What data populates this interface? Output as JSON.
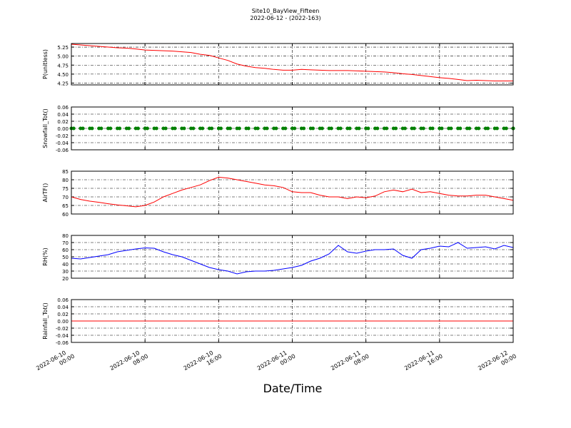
{
  "figure": {
    "title": "Site10_BayView_Fifteen",
    "subtitle": "2022-06-12 - (2022-163)",
    "xlabel": "Date/Time",
    "xlim": [
      "2022-06-10 00:00",
      "2022-06-12 00:00"
    ],
    "xticks": [
      "2022-06-10 00:00",
      "2022-06-10 08:00",
      "2022-06-10 16:00",
      "2022-06-11 00:00",
      "2022-06-11 08:00",
      "2022-06-11 16:00",
      "2022-06-12 00:00"
    ],
    "x": [
      "2022-06-10 00:00",
      "2022-06-10 01:00",
      "2022-06-10 02:00",
      "2022-06-10 03:00",
      "2022-06-10 04:00",
      "2022-06-10 05:00",
      "2022-06-10 06:00",
      "2022-06-10 07:00",
      "2022-06-10 08:00",
      "2022-06-10 09:00",
      "2022-06-10 10:00",
      "2022-06-10 11:00",
      "2022-06-10 12:00",
      "2022-06-10 13:00",
      "2022-06-10 14:00",
      "2022-06-10 15:00",
      "2022-06-10 16:00",
      "2022-06-10 17:00",
      "2022-06-10 18:00",
      "2022-06-10 19:00",
      "2022-06-10 20:00",
      "2022-06-10 21:00",
      "2022-06-10 22:00",
      "2022-06-10 23:00",
      "2022-06-11 00:00",
      "2022-06-11 01:00",
      "2022-06-11 02:00",
      "2022-06-11 03:00",
      "2022-06-11 04:00",
      "2022-06-11 05:00",
      "2022-06-11 06:00",
      "2022-06-11 07:00",
      "2022-06-11 08:00",
      "2022-06-11 09:00",
      "2022-06-11 10:00",
      "2022-06-11 11:00",
      "2022-06-11 12:00",
      "2022-06-11 13:00",
      "2022-06-11 14:00",
      "2022-06-11 15:00",
      "2022-06-11 16:00",
      "2022-06-11 17:00",
      "2022-06-11 18:00",
      "2022-06-11 19:00",
      "2022-06-11 20:00",
      "2022-06-11 21:00",
      "2022-06-11 22:00",
      "2022-06-11 23:00",
      "2022-06-12 00:00"
    ]
  },
  "chart_data": [
    {
      "type": "line",
      "ylabel": "P(unitless)",
      "color": "#ff0000",
      "grid": true,
      "ylim": [
        4.2,
        5.35
      ],
      "yticks": [
        4.25,
        {
          "value": 4.5,
          "label": "4.50"
        },
        4.75,
        {
          "value": 5.0,
          "label": "5.00"
        },
        5.25
      ],
      "values": [
        5.33,
        5.31,
        5.29,
        5.27,
        5.25,
        5.23,
        5.22,
        5.2,
        5.17,
        5.16,
        5.15,
        5.14,
        5.12,
        5.1,
        5.05,
        5.02,
        4.95,
        4.88,
        4.78,
        4.72,
        4.68,
        4.66,
        4.63,
        4.61,
        4.61,
        4.63,
        4.62,
        4.61,
        4.6,
        4.6,
        4.6,
        4.59,
        4.58,
        4.57,
        4.56,
        4.54,
        4.51,
        4.49,
        4.46,
        4.43,
        4.4,
        4.38,
        4.35,
        4.32,
        4.33,
        4.32,
        4.31,
        4.31,
        4.31
      ]
    },
    {
      "type": "scatter",
      "ylabel": "Snowfall_Tot()",
      "color": "#008000",
      "grid": true,
      "ylim": [
        -0.06,
        0.06
      ],
      "yticks": [
        -0.06,
        -0.04,
        -0.02,
        {
          "value": 0,
          "label": "0.00"
        },
        0.02,
        0.04,
        0.06
      ],
      "values": [
        0,
        0,
        0,
        0,
        0,
        0,
        0,
        0,
        0,
        0,
        0,
        0,
        0,
        0,
        0,
        0,
        0,
        0,
        0,
        0,
        0,
        0,
        0,
        0,
        0,
        0,
        0,
        0,
        0,
        0,
        0,
        0,
        0,
        0,
        0,
        0,
        0,
        0,
        0,
        0,
        0,
        0,
        0,
        0,
        0,
        0,
        0,
        0,
        0
      ]
    },
    {
      "type": "line",
      "ylabel": "AirTF()",
      "color": "#ff0000",
      "grid": true,
      "ylim": [
        60,
        85
      ],
      "yticks": [
        60,
        65,
        70,
        75,
        80,
        85
      ],
      "values": [
        70,
        68.5,
        67.5,
        66.8,
        66,
        65.3,
        64.8,
        64.2,
        65,
        67,
        70,
        72,
        74,
        75.5,
        77,
        79.5,
        81.5,
        81,
        80,
        79,
        78,
        77,
        76.5,
        75.5,
        73,
        72.5,
        72.5,
        71,
        70,
        70,
        69,
        70,
        69.5,
        70.5,
        73,
        74,
        73,
        74.5,
        72.5,
        73,
        72,
        71,
        70.5,
        70.5,
        71,
        71,
        70,
        69,
        68
      ]
    },
    {
      "type": "line",
      "ylabel": "RH(%)",
      "color": "#0000ff",
      "grid": true,
      "ylim": [
        20,
        80
      ],
      "yticks": [
        20,
        30,
        40,
        50,
        60,
        70,
        80
      ],
      "values": [
        48,
        47,
        49,
        51,
        53,
        57,
        59,
        61,
        62.5,
        62,
        57,
        53,
        50,
        45,
        40,
        35,
        32,
        30,
        26,
        29,
        30,
        30,
        31,
        33,
        35,
        38,
        44,
        48,
        54,
        66,
        57,
        55,
        58,
        60,
        60,
        61,
        52,
        48,
        60,
        62,
        65,
        64,
        70,
        62,
        63,
        64,
        61,
        66,
        63
      ]
    },
    {
      "type": "line",
      "ylabel": "Rainfall_Tot()",
      "color": "#ff0000",
      "grid": true,
      "ylim": [
        -0.06,
        0.06
      ],
      "yticks": [
        -0.06,
        -0.04,
        -0.02,
        {
          "value": 0,
          "label": "0.00"
        },
        0.02,
        0.04,
        0.06
      ],
      "values": [
        0,
        0,
        0,
        0,
        0,
        0,
        0,
        0,
        0,
        0,
        0,
        0,
        0,
        0,
        0,
        0,
        0,
        0,
        0,
        0,
        0,
        0,
        0,
        0,
        0,
        0,
        0,
        0,
        0,
        0,
        0,
        0,
        0,
        0,
        0,
        0,
        0,
        0,
        0,
        0,
        0,
        0,
        0,
        0,
        0,
        0,
        0,
        0,
        0
      ]
    }
  ]
}
